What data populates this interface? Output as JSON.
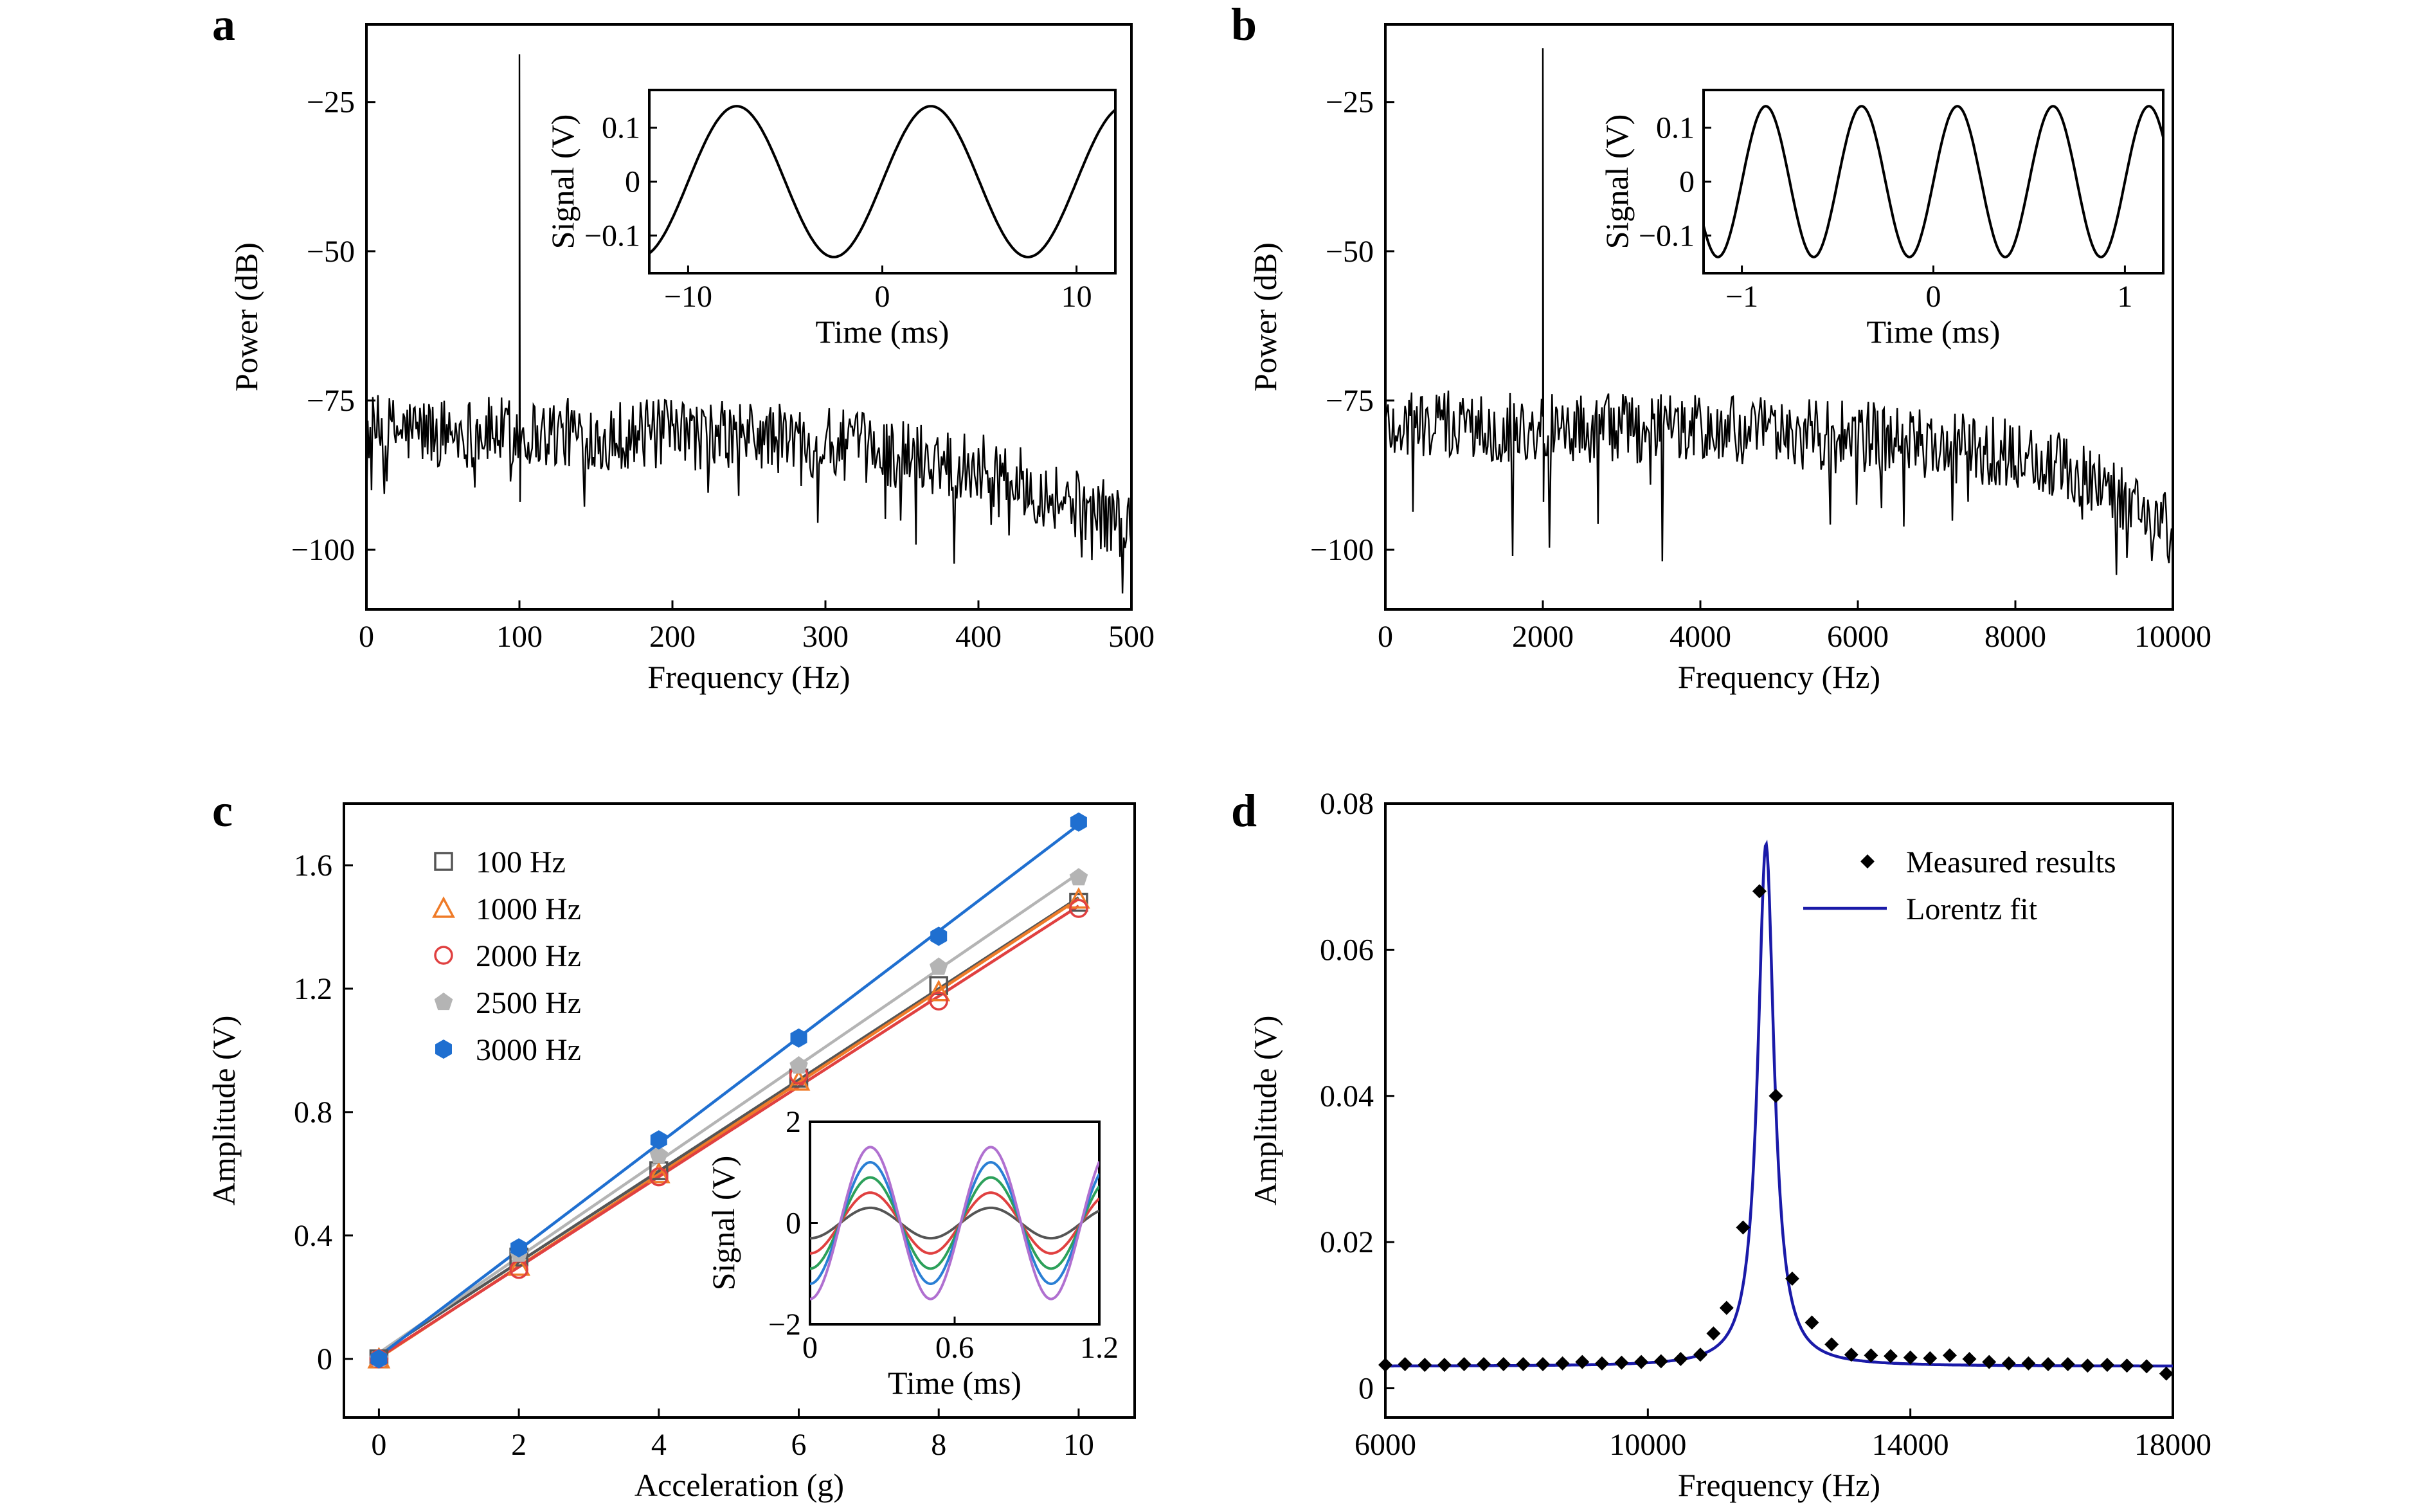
{
  "chart_data": [
    {
      "panel": "a",
      "type": "line",
      "xlabel": "Frequency (Hz)",
      "ylabel": "Power (dB)",
      "xlim": [
        0,
        500
      ],
      "ylim": [
        -110,
        -12
      ],
      "xticks": [
        0,
        100,
        200,
        300,
        400,
        500
      ],
      "yticks": [
        -100,
        -75,
        -50,
        -25
      ],
      "xtick_labels": [
        "0",
        "100",
        "200",
        "300",
        "400",
        "500"
      ],
      "ytick_labels": [
        "−100",
        "−75",
        "−50",
        "−25"
      ],
      "series": [
        {
          "peak": {
            "x": 100,
            "y": -17
          },
          "noise_floor": [
            [
              0,
              -80
            ],
            [
              250,
              -81
            ],
            [
              300,
              -82
            ],
            [
              400,
              -86
            ],
            [
              450,
              -91
            ],
            [
              500,
              -96
            ]
          ]
        }
      ],
      "inset": {
        "type": "line",
        "xlabel": "Time (ms)",
        "ylabel": "Signal (V)",
        "xlim": [
          -12,
          12
        ],
        "ylim": [
          -0.17,
          0.17
        ],
        "xticks": [
          -10,
          0,
          10
        ],
        "yticks": [
          -0.1,
          0,
          0.1
        ],
        "xtick_labels": [
          "−10",
          "0",
          "10"
        ],
        "ytick_labels": [
          "−0.1",
          "0",
          "0.1"
        ],
        "amplitude": 0.14,
        "period": 10,
        "phase_peak_at": 2.5
      }
    },
    {
      "panel": "b",
      "type": "line",
      "xlabel": "Frequency (Hz)",
      "ylabel": "Power (dB)",
      "xlim": [
        0,
        10000
      ],
      "ylim": [
        -110,
        -12
      ],
      "xticks": [
        0,
        2000,
        4000,
        6000,
        8000,
        10000
      ],
      "yticks": [
        -100,
        -75,
        -50,
        -25
      ],
      "xtick_labels": [
        "0",
        "2000",
        "4000",
        "6000",
        "8000",
        "10000"
      ],
      "ytick_labels": [
        "−100",
        "−75",
        "−50",
        "−25"
      ],
      "series": [
        {
          "peak": {
            "x": 2000,
            "y": -16
          },
          "noise_floor": [
            [
              0,
              -79
            ],
            [
              4000,
              -80
            ],
            [
              6000,
              -81
            ],
            [
              8000,
              -84
            ],
            [
              9000,
              -88
            ],
            [
              10000,
              -97
            ]
          ]
        }
      ],
      "inset": {
        "type": "line",
        "xlabel": "Time (ms)",
        "ylabel": "Signal (V)",
        "xlim": [
          -1.2,
          1.2
        ],
        "ylim": [
          -0.17,
          0.17
        ],
        "xticks": [
          -1,
          0,
          1
        ],
        "yticks": [
          -0.1,
          0,
          0.1
        ],
        "xtick_labels": [
          "−1",
          "0",
          "1"
        ],
        "ytick_labels": [
          "−0.1",
          "0",
          "0.1"
        ],
        "amplitude": 0.14,
        "period": 0.5,
        "phase_peak_at": 0.125
      }
    },
    {
      "panel": "c",
      "type": "scatter",
      "xlabel": "Acceleration (g)",
      "ylabel": "Amplitude (V)",
      "xlim": [
        -0.5,
        10.8
      ],
      "ylim": [
        -0.19,
        1.8
      ],
      "xticks": [
        0,
        2,
        4,
        6,
        8,
        10
      ],
      "yticks": [
        0,
        0.4,
        0.8,
        1.2,
        1.6
      ],
      "xtick_labels": [
        "0",
        "2",
        "4",
        "6",
        "8",
        "10"
      ],
      "ytick_labels": [
        "0",
        "0.4",
        "0.8",
        "1.2",
        "1.6"
      ],
      "legend_position": "top-left",
      "x": [
        0,
        2,
        4,
        6,
        8,
        10
      ],
      "series": [
        {
          "name": "100 Hz",
          "marker": "open-square",
          "color": "#555555",
          "values": [
            0,
            0.33,
            0.61,
            0.91,
            1.21,
            1.48
          ]
        },
        {
          "name": "1000 Hz",
          "marker": "open-triangle",
          "color": "#ef7b28",
          "values": [
            0,
            0.3,
            0.6,
            0.9,
            1.19,
            1.49
          ]
        },
        {
          "name": "2000 Hz",
          "marker": "open-circle",
          "color": "#e04040",
          "values": [
            0,
            0.29,
            0.59,
            0.92,
            1.16,
            1.46
          ]
        },
        {
          "name": "2500 Hz",
          "marker": "filled-pentagon",
          "color": "#b4b4b4",
          "values": [
            0,
            0.34,
            0.66,
            0.95,
            1.27,
            1.56
          ]
        },
        {
          "name": "3000 Hz",
          "marker": "filled-hexagon",
          "color": "#1f6fd0",
          "values": [
            0,
            0.36,
            0.71,
            1.04,
            1.37,
            1.74
          ]
        }
      ],
      "inset": {
        "type": "line",
        "xlabel": "Time (ms)",
        "ylabel": "Signal (V)",
        "xlim": [
          0,
          1.2
        ],
        "ylim": [
          -2,
          2
        ],
        "xticks": [
          0,
          0.6,
          1.2
        ],
        "yticks": [
          -2,
          0,
          2
        ],
        "xtick_labels": [
          "0",
          "0.6",
          "1.2"
        ],
        "ytick_labels": [
          "−2",
          "0",
          "2"
        ],
        "period": 0.5,
        "phase_peak_at": 0.25,
        "series": [
          {
            "color": "#555555",
            "amplitude": 0.3
          },
          {
            "color": "#e04040",
            "amplitude": 0.6
          },
          {
            "color": "#2ca05a",
            "amplitude": 0.9
          },
          {
            "color": "#2a7fd4",
            "amplitude": 1.2
          },
          {
            "color": "#b070d0",
            "amplitude": 1.5
          }
        ]
      }
    },
    {
      "panel": "d",
      "type": "scatter",
      "xlabel": "Frequency (Hz)",
      "ylabel": "Amplitude (V)",
      "xlim": [
        6000,
        18000
      ],
      "ylim": [
        -0.004,
        0.08
      ],
      "xticks": [
        6000,
        10000,
        14000,
        18000
      ],
      "yticks": [
        0,
        0.02,
        0.04,
        0.06,
        0.08
      ],
      "xtick_labels": [
        "6000",
        "10000",
        "14000",
        "18000"
      ],
      "ytick_labels": [
        "0",
        "0.02",
        "0.04",
        "0.06",
        "0.08"
      ],
      "legend_position": "top-right",
      "series": [
        {
          "name": "Measured results",
          "marker": "filled-diamond",
          "color": "#000000",
          "x": [
            6000,
            6300,
            6600,
            6900,
            7200,
            7500,
            7800,
            8100,
            8400,
            8700,
            9000,
            9300,
            9600,
            9900,
            10200,
            10500,
            10800,
            11000,
            11200,
            11450,
            11700,
            11950,
            12200,
            12500,
            12800,
            13100,
            13400,
            13700,
            14000,
            14300,
            14600,
            14900,
            15200,
            15500,
            15800,
            16100,
            16400,
            16700,
            17000,
            17300,
            17600,
            17900
          ],
          "values": [
            0.0032,
            0.0033,
            0.0032,
            0.0032,
            0.0033,
            0.0033,
            0.0033,
            0.0033,
            0.0033,
            0.0034,
            0.0036,
            0.0034,
            0.0035,
            0.0036,
            0.0037,
            0.004,
            0.0046,
            0.0075,
            0.011,
            0.022,
            0.068,
            0.04,
            0.015,
            0.009,
            0.006,
            0.0046,
            0.0045,
            0.0044,
            0.0042,
            0.0041,
            0.0045,
            0.004,
            0.0036,
            0.0034,
            0.0034,
            0.0033,
            0.0033,
            0.0031,
            0.0032,
            0.0031,
            0.003,
            0.002
          ]
        },
        {
          "name": "Lorentz fit",
          "line": true,
          "color": "#1a1aa8",
          "model": {
            "type": "lorentz",
            "center": 11800,
            "half_width": 150,
            "peak": 0.0745,
            "baseline": 0.003
          }
        }
      ]
    }
  ],
  "panels": {
    "a": "a",
    "b": "b",
    "c": "c",
    "d": "d"
  }
}
